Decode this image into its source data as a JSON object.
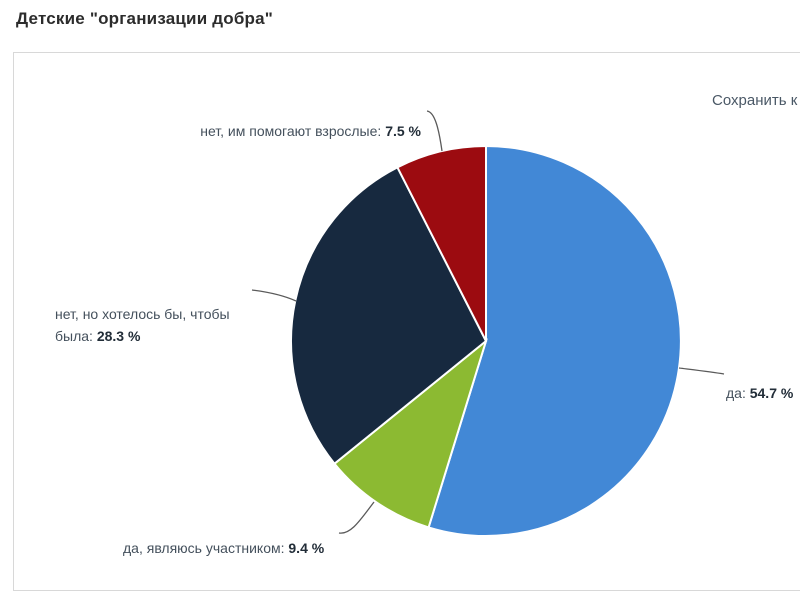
{
  "window": {
    "title": "Детские \"организации добра\"",
    "save_link": "Сохранить к"
  },
  "chart_data": {
    "type": "pie",
    "title": "Детские \"организации добра\"",
    "unit": "%",
    "start_angle_deg": 0,
    "direction": "clockwise",
    "legend": "none",
    "slices": [
      {
        "label": "да",
        "value": 54.7,
        "value_label": "54.7 %",
        "label_prefix": "да: ",
        "color": "#4288d6"
      },
      {
        "label": "да, являюсь участником",
        "value": 9.4,
        "value_label": "9.4 %",
        "label_prefix": "да, являюсь участником: ",
        "color": "#8cba32"
      },
      {
        "label": "нет, но хотелось бы, чтобы была",
        "value": 28.3,
        "value_label": "28.3 %",
        "label_prefix": "нет, но хотелось бы, чтобы была: ",
        "color": "#17293f"
      },
      {
        "label": "нет, им помогают взрослые",
        "value": 7.5,
        "value_label": "7.5 %",
        "label_prefix": "нет, им помогают взрослые: ",
        "color": "#9c0b10"
      }
    ]
  }
}
